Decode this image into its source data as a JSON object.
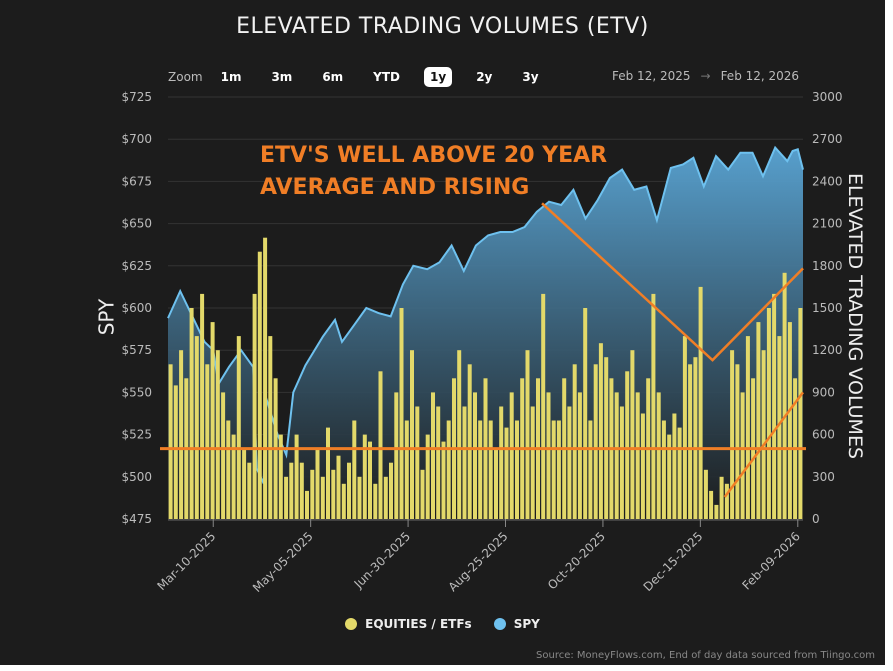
{
  "chart_data": {
    "type": "bar+area",
    "title": "ELEVATED TRADING VOLUMES (ETV)",
    "ylabel_left": "SPY",
    "ylabel_right": "ELEVATED TRADING VOLUMES",
    "ylim_left": [
      475,
      725
    ],
    "ylim_right": [
      0,
      3000
    ],
    "yticks_left": [
      "$725",
      "$700",
      "$675",
      "$650",
      "$625",
      "$600",
      "$575",
      "$550",
      "$525",
      "$500",
      "$475"
    ],
    "yticks_right": [
      "3000",
      "2700",
      "2400",
      "2100",
      "1800",
      "1500",
      "1200",
      "900",
      "600",
      "300",
      "0"
    ],
    "xlim": [
      "2025-02-12",
      "2026-02-12"
    ],
    "xticks": [
      {
        "date": "2025-03-10",
        "label": "Mar-10-2025"
      },
      {
        "date": "2025-05-05",
        "label": "May-05-2025"
      },
      {
        "date": "2025-06-30",
        "label": "Jun-30-2025"
      },
      {
        "date": "2025-08-25",
        "label": "Aug-25-2025"
      },
      {
        "date": "2025-10-20",
        "label": "Oct-20-2025"
      },
      {
        "date": "2025-12-15",
        "label": "Dec-15-2025"
      },
      {
        "date": "2026-02-09",
        "label": "Feb-09-2026"
      }
    ],
    "grid": true,
    "legend_placement": "bottom",
    "series": [
      {
        "name": "EQUITIES / ETFs",
        "type": "bar",
        "axis": "right",
        "color": "#e3d96a",
        "values": [
          1100,
          950,
          1200,
          1000,
          1500,
          1300,
          1600,
          1100,
          1400,
          1200,
          900,
          700,
          600,
          1300,
          500,
          400,
          1600,
          1900,
          2000,
          1300,
          1000,
          600,
          300,
          400,
          600,
          400,
          200,
          350,
          500,
          300,
          650,
          350,
          450,
          250,
          400,
          700,
          300,
          600,
          550,
          250,
          1050,
          300,
          400,
          900,
          1500,
          700,
          1200,
          800,
          350,
          600,
          900,
          800,
          550,
          700,
          1000,
          1200,
          800,
          1100,
          900,
          700,
          1000,
          700,
          500,
          800,
          650,
          900,
          700,
          1000,
          1200,
          800,
          1000,
          1600,
          900,
          700,
          700,
          1000,
          800,
          1100,
          900,
          1500,
          700,
          1100,
          1250,
          1150,
          1000,
          900,
          800,
          1050,
          1200,
          900,
          750,
          1000,
          1600,
          900,
          700,
          600,
          750,
          650,
          1300,
          1100,
          1150,
          1650,
          350,
          200,
          100,
          300,
          250,
          1200,
          1100,
          900,
          1300,
          1000,
          1400,
          1200,
          1500,
          1600,
          1300,
          1750,
          1400,
          1000,
          1500
        ]
      },
      {
        "name": "SPY",
        "type": "area",
        "axis": "left",
        "color": "#6ec1ef",
        "points": [
          [
            "2025-02-12",
            594
          ],
          [
            "2025-02-19",
            610
          ],
          [
            "2025-02-26",
            595
          ],
          [
            "2025-03-05",
            580
          ],
          [
            "2025-03-10",
            575
          ],
          [
            "2025-03-13",
            555
          ],
          [
            "2025-03-19",
            565
          ],
          [
            "2025-03-26",
            575
          ],
          [
            "2025-04-02",
            565
          ],
          [
            "2025-04-04",
            505
          ],
          [
            "2025-04-08",
            496
          ],
          [
            "2025-04-09",
            548
          ],
          [
            "2025-04-16",
            525
          ],
          [
            "2025-04-21",
            513
          ],
          [
            "2025-04-25",
            550
          ],
          [
            "2025-05-02",
            566
          ],
          [
            "2025-05-12",
            583
          ],
          [
            "2025-05-19",
            593
          ],
          [
            "2025-05-23",
            580
          ],
          [
            "2025-05-30",
            590
          ],
          [
            "2025-06-06",
            600
          ],
          [
            "2025-06-13",
            597
          ],
          [
            "2025-06-20",
            595
          ],
          [
            "2025-06-27",
            614
          ],
          [
            "2025-07-03",
            625
          ],
          [
            "2025-07-11",
            623
          ],
          [
            "2025-07-18",
            627
          ],
          [
            "2025-07-25",
            637
          ],
          [
            "2025-08-01",
            622
          ],
          [
            "2025-08-08",
            637
          ],
          [
            "2025-08-15",
            643
          ],
          [
            "2025-08-22",
            645
          ],
          [
            "2025-08-29",
            645
          ],
          [
            "2025-09-05",
            648
          ],
          [
            "2025-09-12",
            657
          ],
          [
            "2025-09-19",
            663
          ],
          [
            "2025-09-26",
            661
          ],
          [
            "2025-10-03",
            670
          ],
          [
            "2025-10-10",
            653
          ],
          [
            "2025-10-17",
            664
          ],
          [
            "2025-10-24",
            677
          ],
          [
            "2025-10-31",
            682
          ],
          [
            "2025-11-07",
            670
          ],
          [
            "2025-11-14",
            672
          ],
          [
            "2025-11-20",
            652
          ],
          [
            "2025-11-28",
            683
          ],
          [
            "2025-12-05",
            685
          ],
          [
            "2025-12-11",
            689
          ],
          [
            "2025-12-17",
            672
          ],
          [
            "2025-12-24",
            690
          ],
          [
            "2025-12-31",
            682
          ],
          [
            "2026-01-07",
            692
          ],
          [
            "2026-01-14",
            692
          ],
          [
            "2026-01-20",
            678
          ],
          [
            "2026-01-27",
            695
          ],
          [
            "2026-02-03",
            687
          ],
          [
            "2026-02-06",
            693
          ],
          [
            "2026-02-09",
            694
          ],
          [
            "2026-02-12",
            682
          ]
        ]
      }
    ],
    "annotations": {
      "text_line1": "ETV'S WELL ABOVE 20 YEAR",
      "text_line2": "AVERAGE AND RISING",
      "color": "#f07e26",
      "average_line_volume": 500,
      "v_line": [
        [
          "2025-09-15",
          2244
        ],
        [
          "2025-12-22",
          1129
        ],
        [
          "2026-02-12",
          1782
        ]
      ],
      "trend_line": [
        [
          "2025-12-29",
          156
        ],
        [
          "2026-02-12",
          900
        ]
      ]
    }
  },
  "zoom": {
    "label": "Zoom",
    "options": [
      "1m",
      "3m",
      "6m",
      "YTD",
      "1y",
      "2y",
      "3y"
    ],
    "selected": "1y"
  },
  "range": {
    "from": "Feb 12, 2025",
    "sep": "→",
    "to": "Feb 12, 2026"
  },
  "legend": {
    "items": [
      {
        "label": "EQUITIES / ETFs",
        "color": "#e3d96a"
      },
      {
        "label": "SPY",
        "color": "#6ec1ef"
      }
    ]
  },
  "source": "Source: MoneyFlows.com, End of day data sourced from Tiingo.com"
}
